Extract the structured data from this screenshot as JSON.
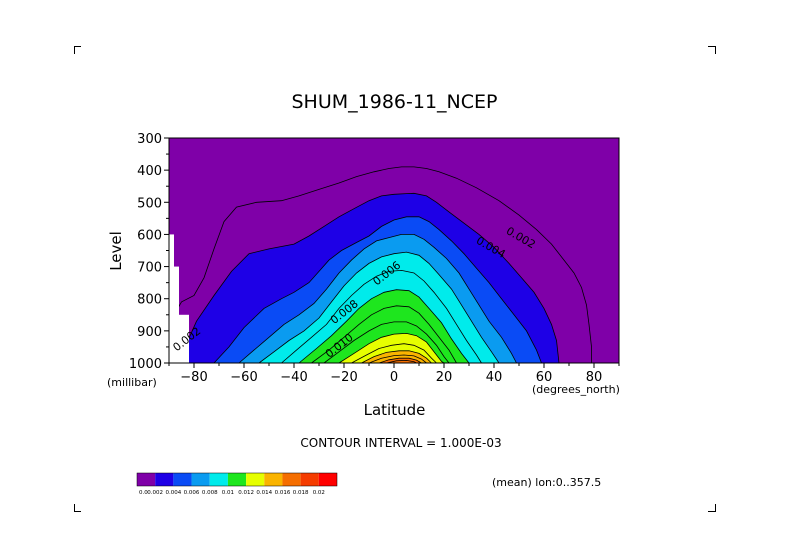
{
  "chart_data": {
    "type": "contour",
    "title": "SHUM_1986-11_NCEP",
    "xlabel": "Latitude",
    "ylabel": "Level",
    "x_units": "(degrees_north)",
    "y_units": "(millibar)",
    "xlim": [
      -90,
      90
    ],
    "ylim": [
      1000,
      300
    ],
    "x_ticks": [
      -80,
      -60,
      -40,
      -20,
      0,
      20,
      40,
      60,
      80
    ],
    "y_ticks": [
      300,
      400,
      500,
      600,
      700,
      800,
      900,
      1000
    ],
    "x_tick_labels": [
      "−80",
      "−60",
      "−40",
      "−20",
      "0",
      "20",
      "40",
      "60",
      "80"
    ],
    "y_tick_labels": [
      "300",
      "400",
      "500",
      "600",
      "700",
      "800",
      "900",
      "1000"
    ],
    "contour_interval_text": "CONTOUR INTERVAL = 1.000E-03",
    "annotation": "(mean) lon:0..357.5",
    "contour_labels": [
      {
        "text": "0.002",
        "lon": 50,
        "lev": 620
      },
      {
        "text": "0.004",
        "lon": 38,
        "lev": 650
      },
      {
        "text": "0.006",
        "lon": -2,
        "lev": 730
      },
      {
        "text": "0.008",
        "lon": -19,
        "lev": 850
      },
      {
        "text": "0.010",
        "lon": -21,
        "lev": 955
      },
      {
        "text": "0.002",
        "lon": -82,
        "lev": 935
      }
    ],
    "legend": {
      "levels": [
        0.0,
        0.002,
        0.004,
        0.006,
        0.008,
        0.01,
        0.012,
        0.014,
        0.016,
        0.018,
        0.02
      ],
      "labels": [
        "0.0",
        "0.002",
        "0.004",
        "0.006",
        "0.008",
        "0.01",
        "0.012",
        "0.014",
        "0.016",
        "0.018",
        "0.02"
      ],
      "colors": [
        "#7f00a8",
        "#1e00e6",
        "#0a4bf5",
        "#0a9bf0",
        "#00ebeb",
        "#1ee61e",
        "#e6ff00",
        "#fab400",
        "#f56e00",
        "#f53c00",
        "#ff0000"
      ]
    },
    "missing_mask": [
      {
        "lon": [
          -90,
          -88
        ],
        "lev": [
          600,
          1000
        ]
      },
      {
        "lon": [
          -88,
          -86
        ],
        "lev": [
          700,
          1000
        ]
      },
      {
        "lon": [
          -86,
          -82
        ],
        "lev": [
          850,
          1000
        ]
      }
    ],
    "fill_contours": [
      {
        "value": 0.002,
        "color": "#1e00e6",
        "points": [
          [
            -85,
            1000
          ],
          [
            -83,
            940
          ],
          [
            -79,
            870
          ],
          [
            -72,
            790
          ],
          [
            -65,
            715
          ],
          [
            -58,
            660
          ],
          [
            -50,
            645
          ],
          [
            -40,
            630
          ],
          [
            -34,
            605
          ],
          [
            -28,
            575
          ],
          [
            -22,
            545
          ],
          [
            -16,
            520
          ],
          [
            -10,
            495
          ],
          [
            -5,
            480
          ],
          [
            0,
            475
          ],
          [
            5,
            473
          ],
          [
            8,
            472
          ],
          [
            13,
            480
          ],
          [
            17,
            500
          ],
          [
            22,
            530
          ],
          [
            28,
            565
          ],
          [
            34,
            600
          ],
          [
            40,
            640
          ],
          [
            46,
            690
          ],
          [
            51,
            735
          ],
          [
            56,
            780
          ],
          [
            60,
            830
          ],
          [
            63,
            880
          ],
          [
            65,
            930
          ],
          [
            66,
            1000
          ]
        ]
      },
      {
        "value": 0.003,
        "color": "#0a4bf5",
        "points": [
          [
            -72,
            1000
          ],
          [
            -66,
            950
          ],
          [
            -60,
            890
          ],
          [
            -52,
            830
          ],
          [
            -45,
            800
          ],
          [
            -40,
            780
          ],
          [
            -34,
            750
          ],
          [
            -30,
            715
          ],
          [
            -26,
            680
          ],
          [
            -21,
            650
          ],
          [
            -15,
            625
          ],
          [
            -10,
            605
          ],
          [
            -5,
            575
          ],
          [
            0,
            555
          ],
          [
            5,
            545
          ],
          [
            10,
            545
          ],
          [
            14,
            560
          ],
          [
            18,
            585
          ],
          [
            23,
            620
          ],
          [
            28,
            660
          ],
          [
            33,
            705
          ],
          [
            38,
            750
          ],
          [
            43,
            800
          ],
          [
            48,
            850
          ],
          [
            53,
            900
          ],
          [
            57,
            960
          ],
          [
            59,
            1000
          ]
        ]
      },
      {
        "value": 0.004,
        "color": "#0a9bf0",
        "points": [
          [
            -62,
            1000
          ],
          [
            -56,
            960
          ],
          [
            -50,
            920
          ],
          [
            -44,
            880
          ],
          [
            -38,
            850
          ],
          [
            -32,
            815
          ],
          [
            -27,
            770
          ],
          [
            -22,
            720
          ],
          [
            -17,
            680
          ],
          [
            -12,
            645
          ],
          [
            -7,
            620
          ],
          [
            -2,
            610
          ],
          [
            3,
            600
          ],
          [
            8,
            600
          ],
          [
            12,
            615
          ],
          [
            16,
            640
          ],
          [
            21,
            675
          ],
          [
            26,
            720
          ],
          [
            30,
            770
          ],
          [
            34,
            820
          ],
          [
            38,
            870
          ],
          [
            43,
            920
          ],
          [
            47,
            970
          ],
          [
            49,
            1000
          ]
        ]
      },
      {
        "value": 0.005,
        "color": "#00ebeb",
        "points": [
          [
            -54,
            1000
          ],
          [
            -48,
            965
          ],
          [
            -42,
            930
          ],
          [
            -36,
            900
          ],
          [
            -30,
            860
          ],
          [
            -25,
            810
          ],
          [
            -20,
            760
          ],
          [
            -15,
            720
          ],
          [
            -10,
            690
          ],
          [
            -5,
            670
          ],
          [
            0,
            660
          ],
          [
            5,
            655
          ],
          [
            10,
            665
          ],
          [
            14,
            690
          ],
          [
            18,
            725
          ],
          [
            23,
            770
          ],
          [
            27,
            820
          ],
          [
            31,
            870
          ],
          [
            35,
            920
          ],
          [
            39,
            965
          ],
          [
            42,
            1000
          ]
        ]
      },
      {
        "value": 0.006,
        "color": "#00ebeb",
        "points": [
          [
            -45,
            1000
          ],
          [
            -39,
            960
          ],
          [
            -33,
            920
          ],
          [
            -27,
            880
          ],
          [
            -22,
            830
          ],
          [
            -17,
            790
          ],
          [
            -12,
            755
          ],
          [
            -7,
            730
          ],
          [
            -2,
            715
          ],
          [
            3,
            712
          ],
          [
            8,
            720
          ],
          [
            12,
            745
          ],
          [
            16,
            780
          ],
          [
            21,
            830
          ],
          [
            25,
            880
          ],
          [
            29,
            930
          ],
          [
            33,
            975
          ],
          [
            35,
            1000
          ]
        ]
      },
      {
        "value": 0.007,
        "color": "#1ee61e",
        "points": [
          [
            -38,
            1000
          ],
          [
            -31,
            955
          ],
          [
            -25,
            915
          ],
          [
            -19,
            870
          ],
          [
            -14,
            830
          ],
          [
            -9,
            800
          ],
          [
            -4,
            780
          ],
          [
            1,
            772
          ],
          [
            6,
            775
          ],
          [
            10,
            795
          ],
          [
            14,
            830
          ],
          [
            19,
            875
          ],
          [
            23,
            925
          ],
          [
            27,
            970
          ],
          [
            30,
            1000
          ]
        ]
      },
      {
        "value": 0.008,
        "color": "#1ee61e",
        "points": [
          [
            -33,
            1000
          ],
          [
            -26,
            960
          ],
          [
            -20,
            920
          ],
          [
            -14,
            880
          ],
          [
            -9,
            850
          ],
          [
            -4,
            830
          ],
          [
            1,
            822
          ],
          [
            6,
            825
          ],
          [
            10,
            845
          ],
          [
            14,
            880
          ],
          [
            18,
            920
          ],
          [
            22,
            960
          ],
          [
            25,
            1000
          ]
        ]
      },
      {
        "value": 0.009,
        "color": "#1ee61e",
        "points": [
          [
            -28,
            1000
          ],
          [
            -22,
            965
          ],
          [
            -16,
            930
          ],
          [
            -10,
            900
          ],
          [
            -5,
            880
          ],
          [
            0,
            872
          ],
          [
            5,
            872
          ],
          [
            9,
            885
          ],
          [
            13,
            910
          ],
          [
            17,
            945
          ],
          [
            20,
            980
          ],
          [
            22,
            1000
          ]
        ]
      },
      {
        "value": 0.01,
        "color": "#e6ff00",
        "points": [
          [
            -22,
            1000
          ],
          [
            -16,
            970
          ],
          [
            -10,
            940
          ],
          [
            -5,
            920
          ],
          [
            0,
            910
          ],
          [
            5,
            908
          ],
          [
            9,
            915
          ],
          [
            13,
            935
          ],
          [
            16,
            965
          ],
          [
            19,
            995
          ],
          [
            20,
            1000
          ]
        ]
      },
      {
        "value": 0.011,
        "color": "#e6ff00",
        "points": [
          [
            -17,
            1000
          ],
          [
            -11,
            975
          ],
          [
            -6,
            955
          ],
          [
            -1,
            945
          ],
          [
            4,
            940
          ],
          [
            8,
            945
          ],
          [
            12,
            960
          ],
          [
            15,
            985
          ],
          [
            17,
            1000
          ]
        ]
      },
      {
        "value": 0.012,
        "color": "#fab400",
        "points": [
          [
            -13,
            1000
          ],
          [
            -8,
            980
          ],
          [
            -3,
            967
          ],
          [
            2,
            962
          ],
          [
            6,
            962
          ],
          [
            10,
            970
          ],
          [
            13,
            985
          ],
          [
            15,
            1000
          ]
        ]
      },
      {
        "value": 0.013,
        "color": "#fab400",
        "points": [
          [
            -10,
            1000
          ],
          [
            -5,
            985
          ],
          [
            0,
            977
          ],
          [
            4,
            975
          ],
          [
            8,
            978
          ],
          [
            11,
            988
          ],
          [
            13,
            1000
          ]
        ]
      },
      {
        "value": 0.014,
        "color": "#f56e00",
        "points": [
          [
            -6,
            1000
          ],
          [
            -2,
            990
          ],
          [
            2,
            985
          ],
          [
            6,
            985
          ],
          [
            9,
            991
          ],
          [
            11,
            1000
          ]
        ]
      },
      {
        "value": 0.015,
        "color": "#f56e00",
        "points": [
          [
            -3,
            1000
          ],
          [
            1,
            993
          ],
          [
            5,
            992
          ],
          [
            8,
            996
          ],
          [
            9,
            1000
          ]
        ]
      }
    ],
    "line_contours": [
      {
        "value": 0.001,
        "points": [
          [
            -88,
            850
          ],
          [
            -85,
            810
          ],
          [
            -80,
            790
          ],
          [
            -76,
            735
          ],
          [
            -72,
            645
          ],
          [
            -68,
            560
          ],
          [
            -63,
            515
          ],
          [
            -55,
            500
          ],
          [
            -45,
            495
          ],
          [
            -38,
            480
          ],
          [
            -30,
            460
          ],
          [
            -22,
            440
          ],
          [
            -15,
            420
          ],
          [
            -8,
            405
          ],
          [
            -2,
            395
          ],
          [
            3,
            390
          ],
          [
            8,
            390
          ],
          [
            13,
            395
          ],
          [
            18,
            405
          ],
          [
            25,
            425
          ],
          [
            33,
            455
          ],
          [
            42,
            495
          ],
          [
            50,
            540
          ],
          [
            57,
            585
          ],
          [
            63,
            630
          ],
          [
            68,
            680
          ],
          [
            72,
            720
          ],
          [
            75,
            765
          ],
          [
            77,
            820
          ],
          [
            78,
            880
          ],
          [
            79,
            950
          ],
          [
            79,
            1000
          ]
        ]
      }
    ]
  }
}
